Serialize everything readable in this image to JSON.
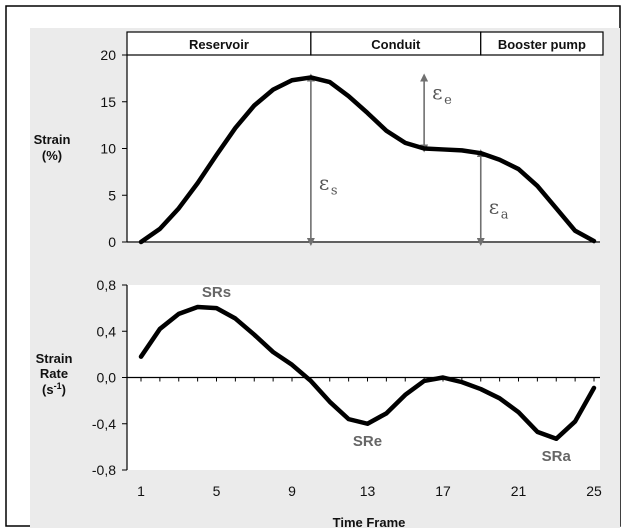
{
  "colors": {
    "frame": "#000000",
    "panel_background": "#ebebeb",
    "plot_background": "#ffffff",
    "curve": "#000000",
    "arrow": "#707070",
    "annotation": "#666666"
  },
  "chart_data": [
    {
      "type": "line",
      "ylabel": [
        "Strain",
        "(%)"
      ],
      "ylim": [
        0,
        20
      ],
      "yticks": [
        0,
        5,
        10,
        15,
        20
      ],
      "xlim": [
        1,
        25
      ],
      "grid": false,
      "phases": [
        {
          "label": "Reservoir",
          "x_start": 1,
          "x_end": 10
        },
        {
          "label": "Conduit",
          "x_start": 10,
          "x_end": 19
        },
        {
          "label": "Booster pump",
          "x_start": 19,
          "x_end": 25
        }
      ],
      "series": [
        {
          "x": [
            1,
            2,
            3,
            4,
            5,
            6,
            7,
            8,
            9,
            10,
            11,
            12,
            13,
            14,
            15,
            16,
            17,
            18,
            19,
            20,
            21,
            22,
            23,
            24,
            25
          ],
          "values": [
            0,
            1.4,
            3.6,
            6.3,
            9.3,
            12.2,
            14.6,
            16.3,
            17.3,
            17.6,
            17.1,
            15.6,
            13.8,
            11.9,
            10.6,
            10.0,
            9.9,
            9.8,
            9.5,
            8.8,
            7.8,
            6.0,
            3.6,
            1.2,
            0.1
          ]
        }
      ],
      "annotations": [
        {
          "symbol": "ε",
          "subscript": "s",
          "x_from": 10,
          "x_to": 10,
          "y_from": 0,
          "y_to": 17.6
        },
        {
          "symbol": "ε",
          "subscript": "e",
          "x_from": 16,
          "x_to": 16,
          "y_from": 10.0,
          "y_to": 17.6
        },
        {
          "symbol": "ε",
          "subscript": "a",
          "x_from": 19,
          "x_to": 19,
          "y_from": 0,
          "y_to": 9.5
        }
      ]
    },
    {
      "type": "line",
      "ylabel": [
        "Strain",
        "Rate",
        "(s-1)"
      ],
      "ylabel_superscript": "-1",
      "ylim": [
        -0.8,
        0.8
      ],
      "yticks": [
        "0,8",
        "0,4",
        "0,0",
        "-0,4",
        "-0,8"
      ],
      "ytick_values": [
        0.8,
        0.4,
        0.0,
        -0.4,
        -0.8
      ],
      "xlim": [
        1,
        25
      ],
      "xticks": [
        1,
        5,
        9,
        13,
        17,
        21,
        25
      ],
      "xlabel": "Time Frame",
      "grid": false,
      "series": [
        {
          "x": [
            1,
            2,
            3,
            4,
            5,
            6,
            7,
            8,
            9,
            10,
            11,
            12,
            13,
            14,
            15,
            16,
            17,
            18,
            19,
            20,
            21,
            22,
            23,
            24,
            25
          ],
          "values": [
            0.18,
            0.42,
            0.55,
            0.61,
            0.6,
            0.51,
            0.37,
            0.22,
            0.11,
            -0.03,
            -0.21,
            -0.36,
            -0.4,
            -0.31,
            -0.15,
            -0.03,
            0.0,
            -0.04,
            -0.1,
            -0.18,
            -0.3,
            -0.47,
            -0.53,
            -0.38,
            -0.09
          ]
        }
      ],
      "labels": [
        {
          "text": "SRs",
          "x": 5,
          "y": 0.61
        },
        {
          "text": "SRe",
          "x": 13,
          "y": -0.4
        },
        {
          "text": "SRa",
          "x": 23,
          "y": -0.53
        }
      ]
    }
  ]
}
